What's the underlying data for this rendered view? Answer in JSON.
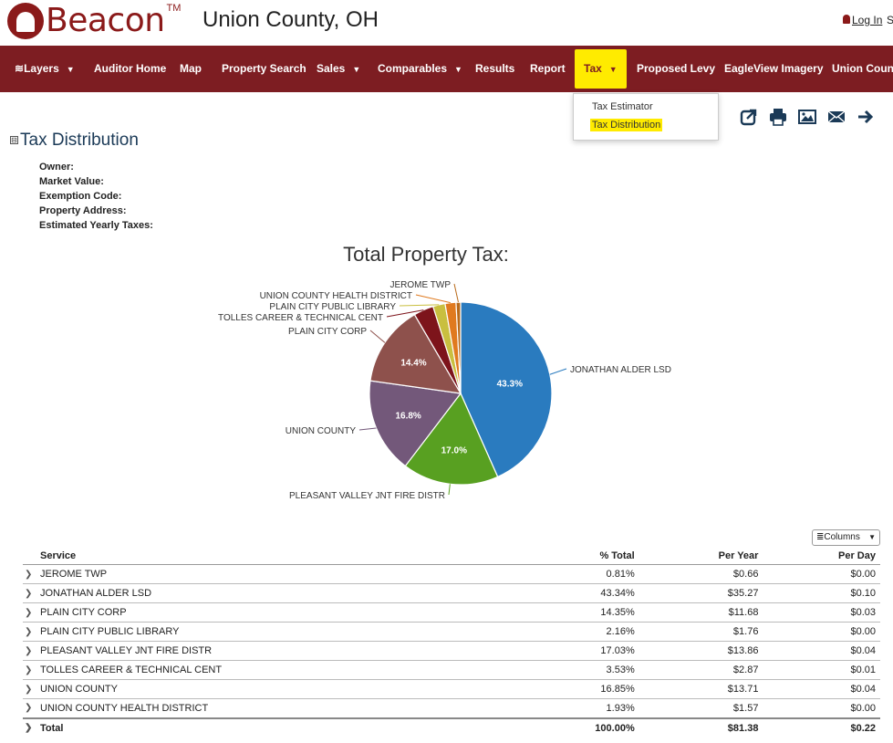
{
  "header": {
    "logo_text": "Beacon",
    "logo_tm": "TM",
    "county": "Union County, OH",
    "login": "Log In",
    "login_trailing": "S"
  },
  "nav": {
    "layers": "Layers",
    "auditor_home": "Auditor Home",
    "map": "Map",
    "property_search": "Property Search",
    "sales": "Sales",
    "comparables": "Comparables",
    "results": "Results",
    "report": "Report",
    "tax": "Tax",
    "proposed_levy": "Proposed Levy",
    "eagleview": "EagleView Imagery",
    "union_county": "Union County"
  },
  "dropdown": {
    "tax_estimator": "Tax Estimator",
    "tax_distribution": "Tax Distribution"
  },
  "toolbar_icons": [
    "share-icon",
    "print-icon",
    "image-icon",
    "email-icon",
    "arrow-right-icon"
  ],
  "section": {
    "title": "Tax Distribution",
    "toggle": "⊟",
    "fields": [
      "Owner:",
      "Market Value:",
      "Exemption Code:",
      "Property Address:",
      "Estimated Yearly Taxes:"
    ]
  },
  "chart_data": {
    "type": "pie",
    "title": "Total Property Tax:",
    "categories": [
      "JONATHAN ALDER LSD",
      "PLEASANT VALLEY JNT FIRE DISTR",
      "UNION COUNTY",
      "PLAIN CITY CORP",
      "TOLLES CAREER & TECHNICAL CENT",
      "PLAIN CITY PUBLIC LIBRARY",
      "UNION COUNTY HEALTH DISTRICT",
      "JEROME TWP"
    ],
    "values": [
      43.34,
      17.03,
      16.85,
      14.35,
      3.53,
      2.16,
      1.93,
      0.81
    ],
    "data_labels": [
      "43.3%",
      "17.0%",
      "16.8%",
      "14.4%",
      "",
      "",
      "",
      ""
    ],
    "colors": [
      "#2a7bbf",
      "#58a021",
      "#73587a",
      "#8e514c",
      "#7d141b",
      "#c9bf3f",
      "#e07a1f",
      "#b96a1a"
    ]
  },
  "columns_button": "Columns",
  "table": {
    "headers": {
      "service": "Service",
      "pct": "% Total",
      "per_year": "Per Year",
      "per_day": "Per Day"
    },
    "rows": [
      {
        "service": "JEROME TWP",
        "pct": "0.81%",
        "per_year": "$0.66",
        "per_day": "$0.00"
      },
      {
        "service": "JONATHAN ALDER LSD",
        "pct": "43.34%",
        "per_year": "$35.27",
        "per_day": "$0.10"
      },
      {
        "service": "PLAIN CITY CORP",
        "pct": "14.35%",
        "per_year": "$11.68",
        "per_day": "$0.03"
      },
      {
        "service": "PLAIN CITY PUBLIC LIBRARY",
        "pct": "2.16%",
        "per_year": "$1.76",
        "per_day": "$0.00"
      },
      {
        "service": "PLEASANT VALLEY JNT FIRE DISTR",
        "pct": "17.03%",
        "per_year": "$13.86",
        "per_day": "$0.04"
      },
      {
        "service": "TOLLES CAREER & TECHNICAL CENT",
        "pct": "3.53%",
        "per_year": "$2.87",
        "per_day": "$0.01"
      },
      {
        "service": "UNION COUNTY",
        "pct": "16.85%",
        "per_year": "$13.71",
        "per_day": "$0.04"
      },
      {
        "service": "UNION COUNTY HEALTH DISTRICT",
        "pct": "1.93%",
        "per_year": "$1.57",
        "per_day": "$0.00"
      }
    ],
    "total": {
      "service": "Total",
      "pct": "100.00%",
      "per_year": "$81.38",
      "per_day": "$0.22"
    }
  }
}
